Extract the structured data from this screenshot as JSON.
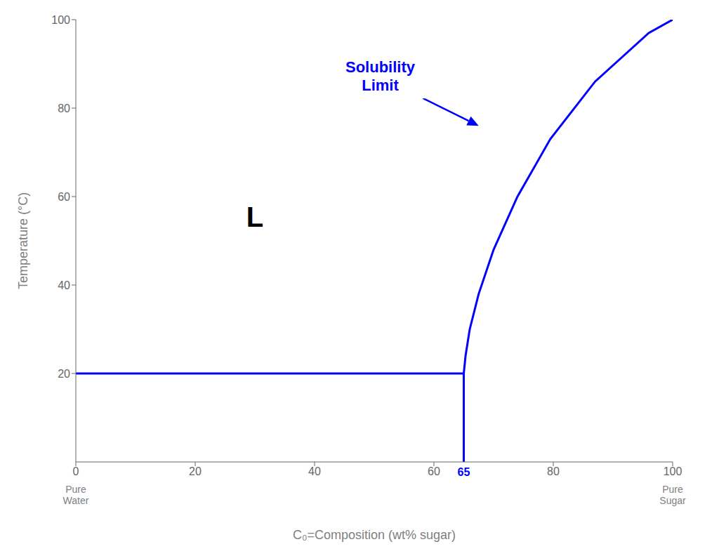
{
  "chart_data": {
    "type": "line",
    "xlabel": "C₀=Composition (wt% sugar)",
    "ylabel": "Temperature (°C)",
    "xlim": [
      0,
      100
    ],
    "ylim": [
      0,
      100
    ],
    "xticks": [
      0,
      20,
      40,
      60,
      80,
      100
    ],
    "yticks": [
      20,
      40,
      60,
      80,
      100
    ],
    "grid": false,
    "series": [
      {
        "x": [
          0,
          65
        ],
        "values": [
          20,
          20
        ],
        "color": "#0000ff"
      },
      {
        "x": [
          65,
          65
        ],
        "values": [
          0,
          20
        ],
        "color": "#0000ff"
      },
      {
        "x": [
          65,
          65.3,
          66.0,
          67.5,
          70.0,
          74.0,
          79.5,
          87.0,
          96.0,
          100.0
        ],
        "values": [
          20,
          24,
          30,
          38,
          48,
          60,
          73,
          86,
          97,
          100
        ],
        "color": "#0000ff"
      }
    ],
    "annotations": [
      {
        "text": "L",
        "x": 30,
        "y": 55,
        "color": "#000000"
      },
      {
        "text": "Solubility\nLimit",
        "x": 51,
        "y": 87,
        "arrow_x": 67.5,
        "arrow_y": 76,
        "color": "#0000ff"
      },
      {
        "text": "65",
        "x": 65,
        "color": "#0000ff"
      },
      {
        "text": "Pure\nWater",
        "x": 0,
        "color": "#808080"
      },
      {
        "text": "Pure\nSugar",
        "x": 100,
        "color": "#808080"
      }
    ]
  }
}
